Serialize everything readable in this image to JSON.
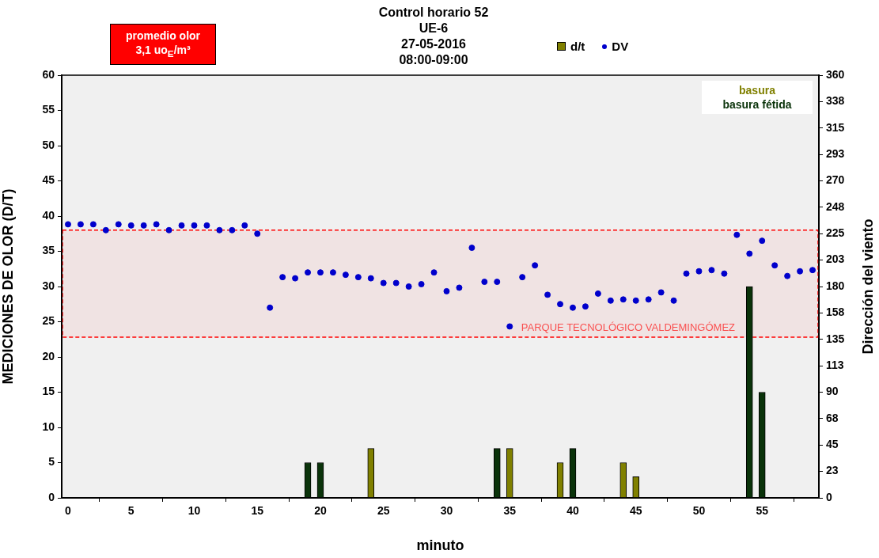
{
  "chart_data": {
    "type": "bar",
    "title": "Control horario 52\nUE-6\n27-05-2016\n08:00-09:00",
    "xlabel": "minuto",
    "ylabel": "MEDICIONES DE OLOR (D/T)",
    "y2label": "Dirección del viento",
    "legend_title": "d/t",
    "legend": "top right",
    "grid": false,
    "marker": "circle",
    "annotations": [
      "promedio olor\n3,1 uo$_{E}$/m³"
    ],
    "xlim": [
      -0.5,
      59.5
    ],
    "xticks": [
      0,
      5,
      10,
      15,
      20,
      25,
      30,
      35,
      40,
      45,
      50,
      55
    ],
    "ylim": [
      0,
      60
    ],
    "yticks": [
      0,
      5,
      10,
      15,
      20,
      25,
      30,
      35,
      40,
      45,
      50,
      55,
      60
    ],
    "y2lim": [
      0,
      360
    ],
    "y2ticks": [
      0,
      {
        "value": 22.5,
        "label": "23"
      },
      45,
      {
        "value": 67.5,
        "label": "68"
      },
      90,
      {
        "value": 112.5,
        "label": "113"
      },
      135,
      {
        "value": 157.5,
        "label": "158"
      },
      180,
      {
        "value": 202.5,
        "label": "203"
      },
      225,
      {
        "value": 247.5,
        "label": "248"
      },
      270,
      {
        "value": 292.5,
        "label": "293"
      },
      315,
      {
        "value": 337.5,
        "label": "338"
      },
      360
    ],
    "bands": [
      {
        "axis": "y",
        "from": 22.8,
        "to": 38,
        "label": "PARQUE TECNOLÓGICO VALDEMINGÓMEZ",
        "color": "#ff0000"
      }
    ],
    "series": [
      {
        "name": "basura",
        "color": "#808000",
        "x": [
          24,
          35,
          39,
          44,
          45
        ],
        "values": [
          7,
          7,
          5,
          5,
          3
        ]
      },
      {
        "name": "basura fétida",
        "color": "#0a330a",
        "x": [
          19,
          20,
          34,
          40,
          54,
          55
        ],
        "values": [
          5,
          5,
          7,
          7,
          30,
          15
        ]
      },
      {
        "name": "DV",
        "type": "scatter",
        "axis": "y2",
        "color": "#0000cc",
        "x": [
          0,
          1,
          2,
          3,
          4,
          5,
          6,
          7,
          8,
          9,
          10,
          11,
          12,
          13,
          14,
          15,
          16,
          17,
          18,
          19,
          20,
          21,
          22,
          23,
          24,
          25,
          26,
          27,
          28,
          29,
          30,
          31,
          32,
          33,
          34,
          35,
          36,
          37,
          38,
          39,
          40,
          41,
          42,
          43,
          44,
          45,
          46,
          47,
          48,
          49,
          50,
          51,
          52,
          53,
          54,
          55,
          56,
          57,
          58,
          59
        ],
        "values": [
          233,
          233,
          233,
          228,
          233,
          232,
          232,
          233,
          228,
          232,
          232,
          232,
          228,
          228,
          232,
          225,
          162,
          188,
          187,
          192,
          192,
          192,
          190,
          188,
          187,
          183,
          183,
          180,
          182,
          192,
          176,
          179,
          213,
          184,
          184,
          146,
          188,
          198,
          173,
          165,
          162,
          163,
          174,
          168,
          169,
          168,
          169,
          175,
          168,
          191,
          193,
          194,
          191,
          224,
          208,
          219,
          198,
          189,
          193,
          194
        ]
      }
    ]
  }
}
